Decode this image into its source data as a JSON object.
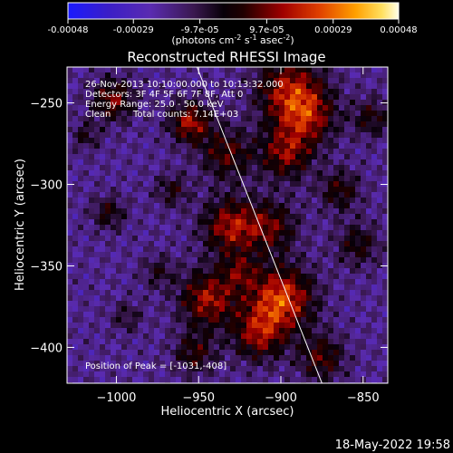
{
  "colorbar": {
    "ticks": [
      "-0.00048",
      "-0.00029",
      "-9.7e-05",
      "9.7e-05",
      "0.00029",
      "0.00048"
    ],
    "tick_values": [
      -0.00048,
      -0.00029,
      -9.7e-05,
      9.7e-05,
      0.00029,
      0.00048
    ],
    "range": [
      -0.00048,
      0.00048
    ],
    "units_base": "(photons cm",
    "units_exp1": "-2",
    "units_mid": " s",
    "units_exp2": "-1",
    "units_mid2": " asec",
    "units_exp3": "-2",
    "units_end": ")"
  },
  "chart_data": {
    "type": "heatmap",
    "title": "Reconstructed RHESSI Image",
    "xlabel": "Heliocentric X (arcsec)",
    "ylabel": "Heliocentric Y (arcsec)",
    "xlim": [
      -1030,
      -835
    ],
    "ylim": [
      -422,
      -228
    ],
    "xticks": [
      -1000,
      -950,
      -900,
      -850
    ],
    "yticks": [
      -400,
      -350,
      -300,
      -250
    ],
    "xtick_labels": [
      "−1000",
      "−950",
      "−900",
      "−850"
    ],
    "ytick_labels": [
      "−400",
      "−350",
      "−300",
      "−250"
    ],
    "annotations": [
      "26-Nov-2013 10:10:00.000 to 10:13:32.000",
      "Detectors: 3F 4F 5F 6F 7F 8F, Att 0",
      "Energy Range: 25.0 - 50.0 keV",
      "Clean",
      "Total counts: 7.14E+03"
    ],
    "peak_label": "Position of Peak = [-1031,-408]",
    "peak_position": [
      -1031,
      -408
    ],
    "limb_line": [
      [
        -951,
        -228
      ],
      [
        -875,
        -422
      ]
    ],
    "grid": false,
    "colormap": "blue-purple-red-yellow-white"
  },
  "footer": {
    "timestamp": "18-May-2022 19:58"
  }
}
